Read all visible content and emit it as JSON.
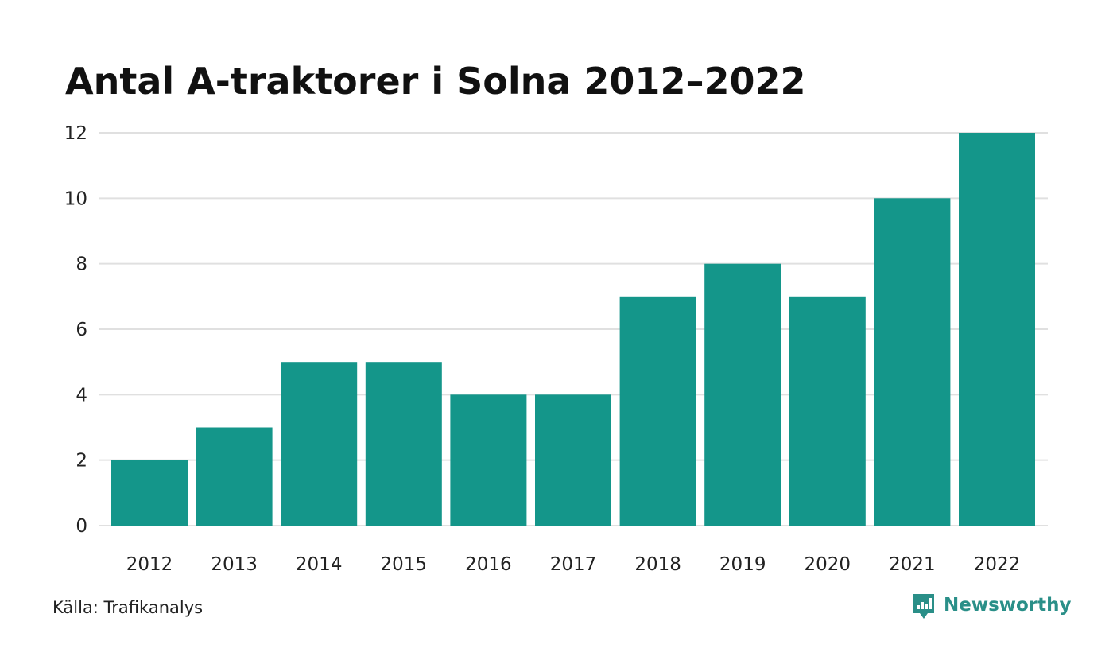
{
  "chart_data": {
    "type": "bar",
    "title": "Antal A-traktorer i Solna 2012–2022",
    "categories": [
      "2012",
      "2013",
      "2014",
      "2015",
      "2016",
      "2017",
      "2018",
      "2019",
      "2020",
      "2021",
      "2022"
    ],
    "values": [
      2,
      3,
      5,
      5,
      4,
      4,
      7,
      8,
      7,
      10,
      12
    ],
    "ylim": [
      0,
      12
    ],
    "yticks": [
      "0",
      "2",
      "4",
      "6",
      "8",
      "10",
      "12"
    ],
    "grid": true,
    "bar_color": "#14968a",
    "grid_color": "#e0e0e0"
  },
  "footer": {
    "source": "Källa: Trafikanalys",
    "brand": "Newsworthy",
    "brand_icon": "newsworthy-logo-icon",
    "brand_color": "#2a8f88"
  }
}
